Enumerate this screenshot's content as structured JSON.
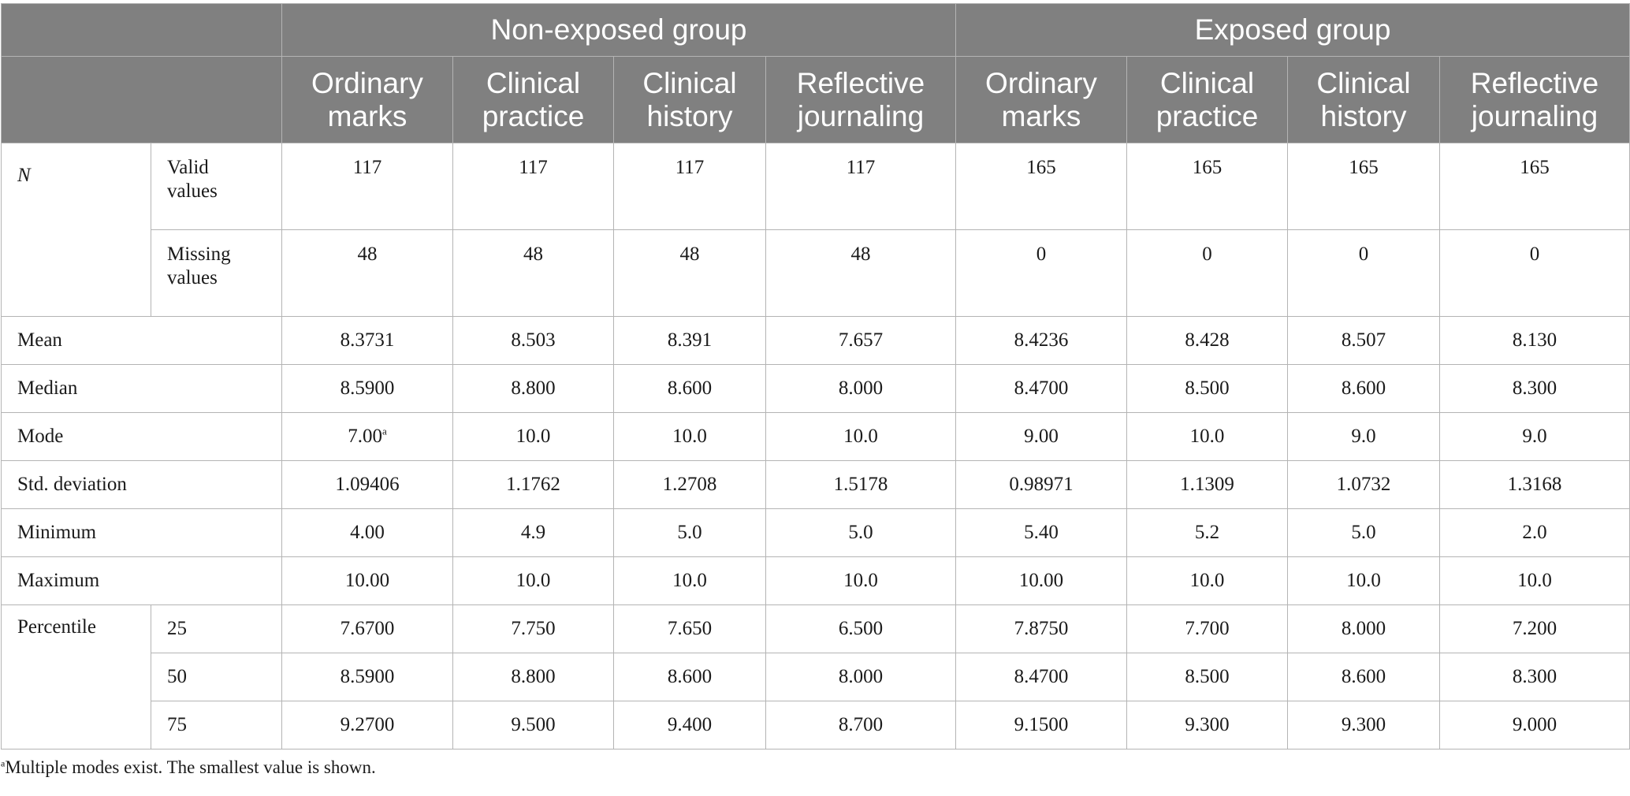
{
  "header": {
    "groups": [
      "Non-exposed group",
      "Exposed group"
    ],
    "columns": [
      [
        "Ordinary",
        "marks"
      ],
      [
        "Clinical",
        "practice"
      ],
      [
        "Clinical",
        "history"
      ],
      [
        "Reflective",
        "journaling"
      ],
      [
        "Ordinary",
        "marks"
      ],
      [
        "Clinical",
        "practice"
      ],
      [
        "Clinical",
        "history"
      ],
      [
        "Reflective",
        "journaling"
      ]
    ]
  },
  "rows": {
    "n_label": "N",
    "valid": {
      "label_1": "Valid",
      "label_2": "values",
      "values": [
        "117",
        "117",
        "117",
        "117",
        "165",
        "165",
        "165",
        "165"
      ]
    },
    "missing": {
      "label_1": "Missing",
      "label_2": "values",
      "values": [
        "48",
        "48",
        "48",
        "48",
        "0",
        "0",
        "0",
        "0"
      ]
    },
    "mean": {
      "label": "Mean",
      "values": [
        "8.3731",
        "8.503",
        "8.391",
        "7.657",
        "8.4236",
        "8.428",
        "8.507",
        "8.130"
      ]
    },
    "median": {
      "label": "Median",
      "values": [
        "8.5900",
        "8.800",
        "8.600",
        "8.000",
        "8.4700",
        "8.500",
        "8.600",
        "8.300"
      ]
    },
    "mode": {
      "label": "Mode",
      "values": [
        "7.00",
        "10.0",
        "10.0",
        "10.0",
        "9.00",
        "10.0",
        "9.0",
        "9.0"
      ],
      "first_sup": "a"
    },
    "std": {
      "label": "Std. deviation",
      "values": [
        "1.09406",
        "1.1762",
        "1.2708",
        "1.5178",
        "0.98971",
        "1.1309",
        "1.0732",
        "1.3168"
      ]
    },
    "min": {
      "label": "Minimum",
      "values": [
        "4.00",
        "4.9",
        "5.0",
        "5.0",
        "5.40",
        "5.2",
        "5.0",
        "2.0"
      ]
    },
    "max": {
      "label": "Maximum",
      "values": [
        "10.00",
        "10.0",
        "10.0",
        "10.0",
        "10.00",
        "10.0",
        "10.0",
        "10.0"
      ]
    },
    "percentile": {
      "label": "Percentile",
      "p25": {
        "label": "25",
        "values": [
          "7.6700",
          "7.750",
          "7.650",
          "6.500",
          "7.8750",
          "7.700",
          "8.000",
          "7.200"
        ]
      },
      "p50": {
        "label": "50",
        "values": [
          "8.5900",
          "8.800",
          "8.600",
          "8.000",
          "8.4700",
          "8.500",
          "8.600",
          "8.300"
        ]
      },
      "p75": {
        "label": "75",
        "values": [
          "9.2700",
          "9.500",
          "9.400",
          "8.700",
          "9.1500",
          "9.300",
          "9.300",
          "9.000"
        ]
      }
    }
  },
  "footnote": {
    "marker": "a",
    "text": "Multiple modes exist. The smallest value is shown."
  },
  "colors": {
    "header_bg": "#808080",
    "header_text": "#ffffff",
    "border": "#b4b4b4"
  }
}
